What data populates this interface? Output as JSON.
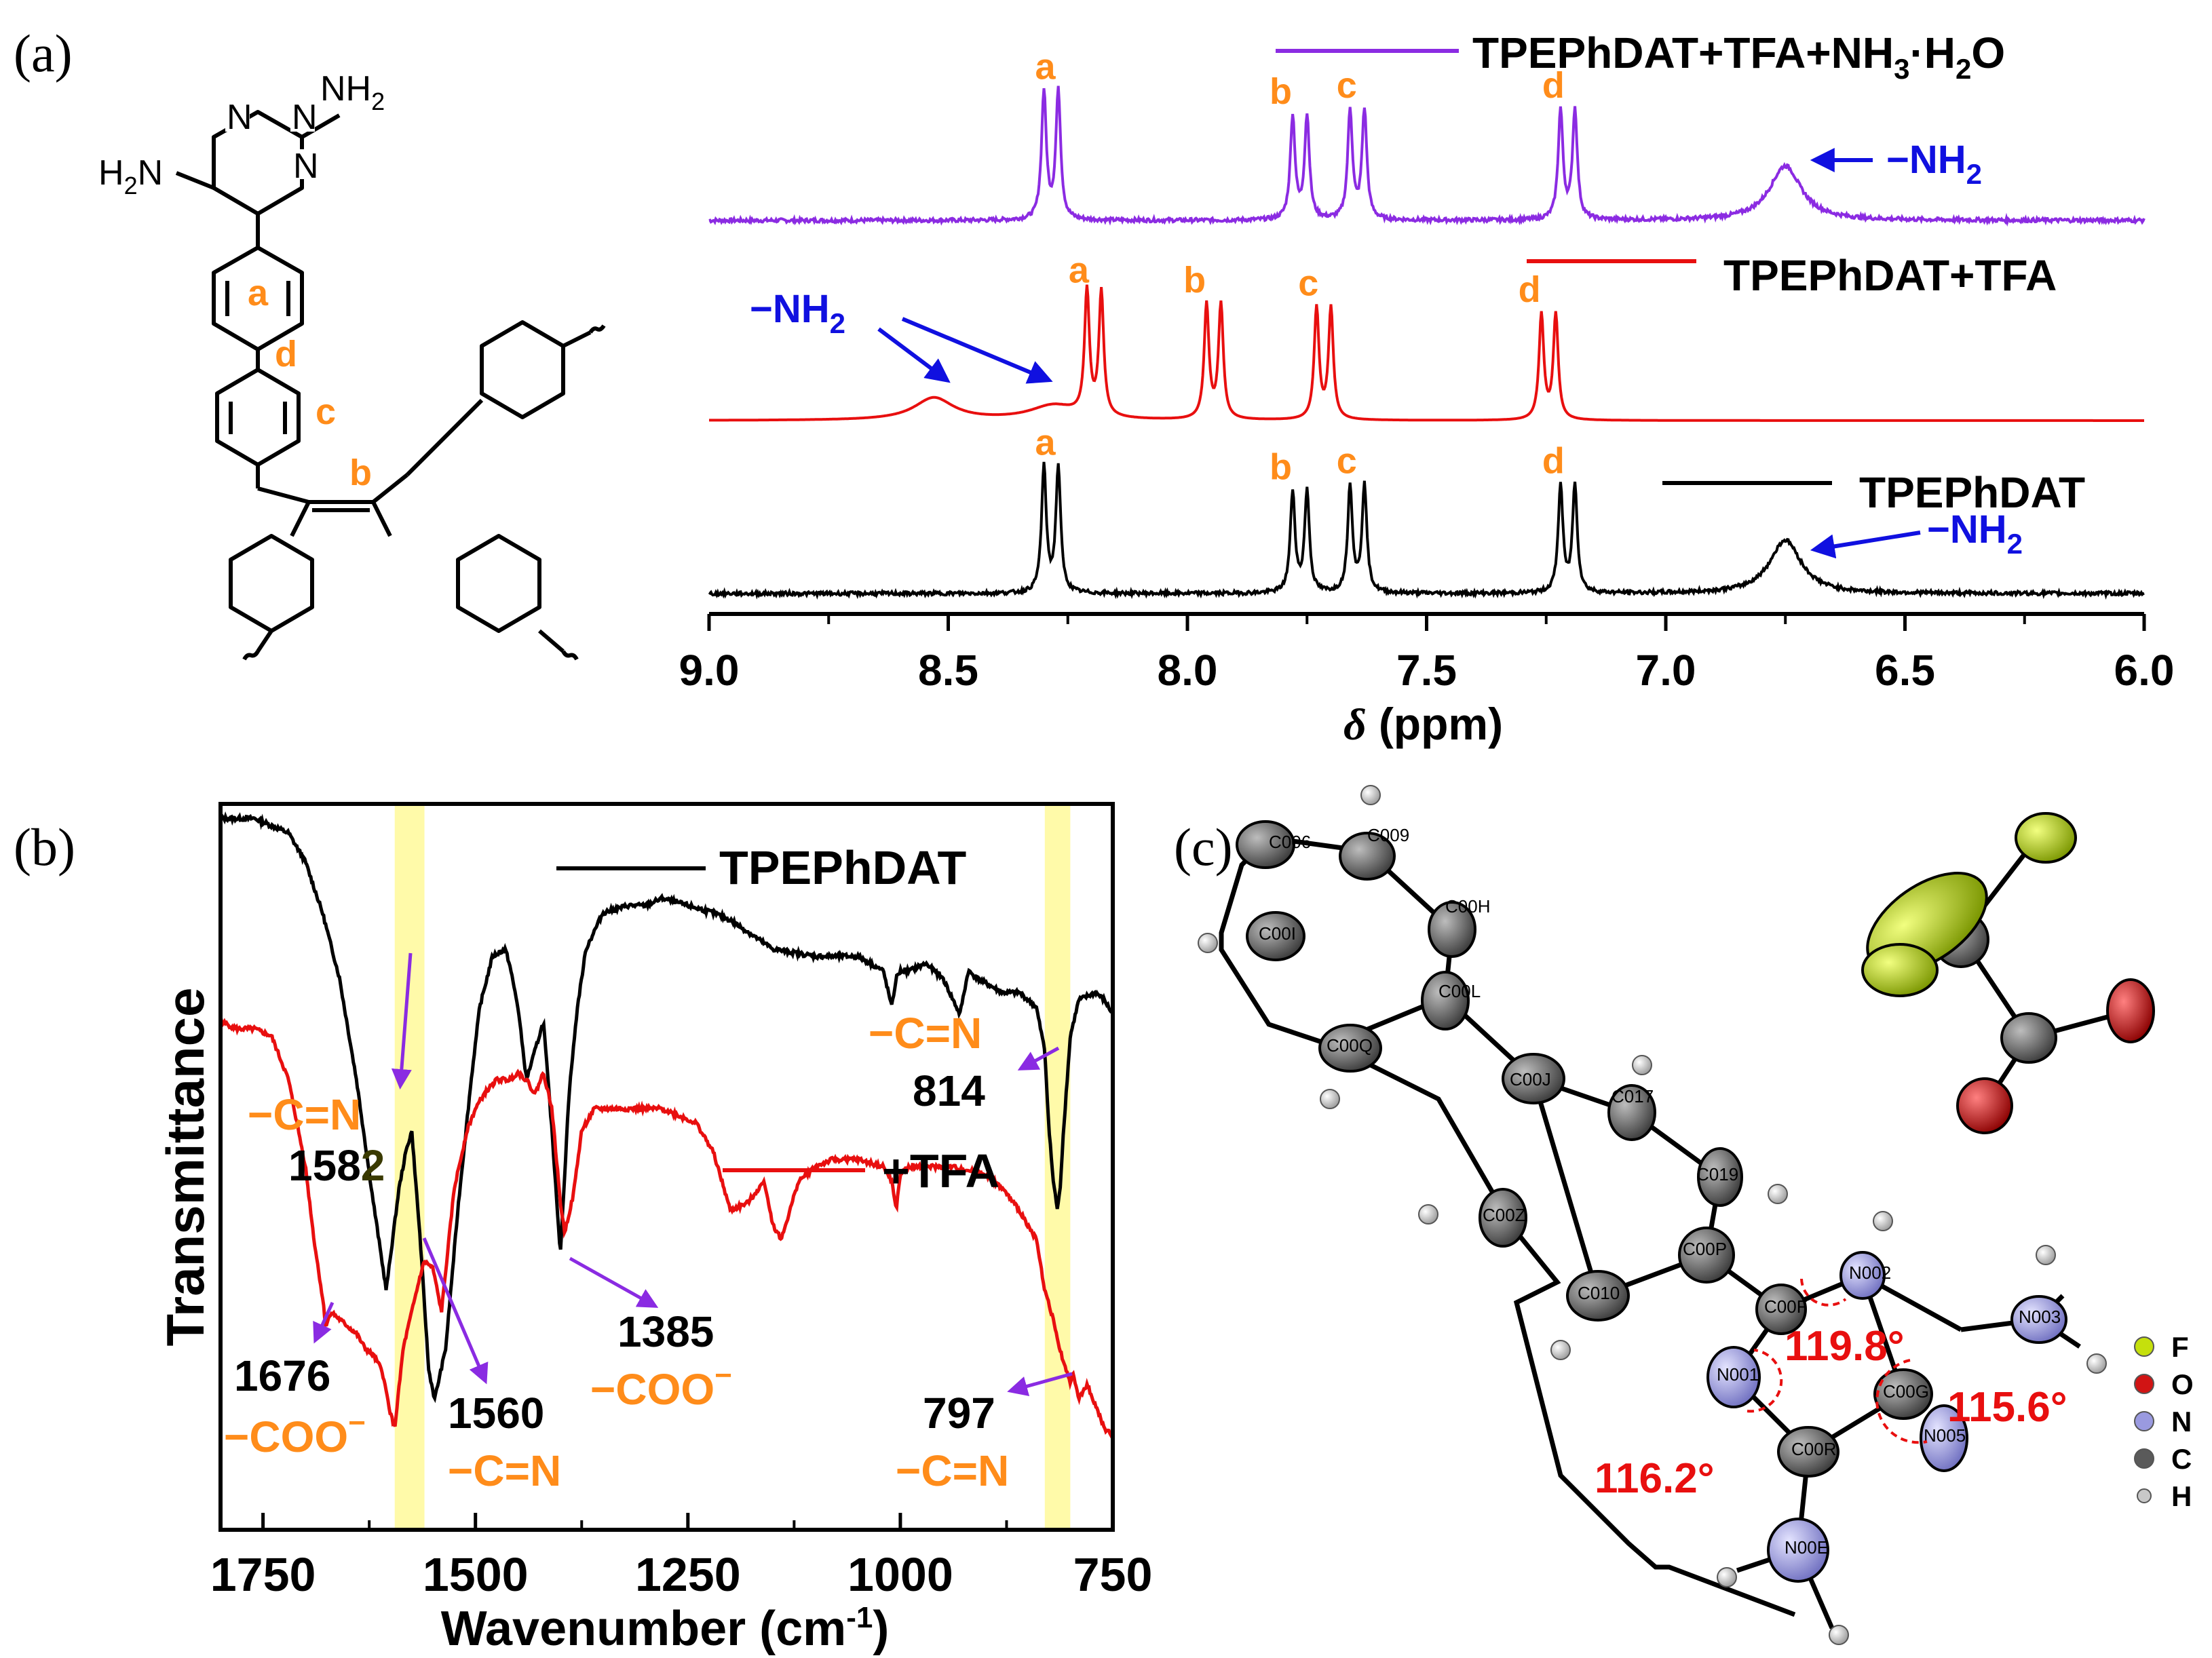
{
  "panel_labels": {
    "a": "(a)",
    "b": "(b)",
    "c": "(c)"
  },
  "colors": {
    "purple": "#8b2be2",
    "red": "#e80f0f",
    "black": "#000000",
    "orange": "#ff8c1a",
    "blue": "#1010e0",
    "arrow_purple": "#8a2be2",
    "highlight": "#fffaa0"
  },
  "structure": {
    "labels": {
      "a": "a",
      "b": "b",
      "c": "c",
      "d": "d"
    },
    "nh2": "NH",
    "h2n": "H",
    "h2n_tail": "N",
    "sub2": "2",
    "n_atom": "N"
  },
  "chart_data": [
    {
      "type": "line",
      "panel": "a",
      "xlabel": "δ (ppm)",
      "xlabel_symbol": "δ",
      "xlabel_unit": "(ppm)",
      "xlim": [
        9.0,
        6.0
      ],
      "xticks": [
        "9.0",
        "8.5",
        "8.0",
        "7.5",
        "7.0",
        "6.5",
        "6.0"
      ],
      "xtick_values": [
        9.0,
        8.5,
        8.0,
        7.5,
        7.0,
        6.5,
        6.0
      ],
      "series": [
        {
          "name": "TPEPhDAT+TFA+NH3·H2O",
          "legend_main": "TPEPhDAT+TFA+NH",
          "legend_sub1": "3",
          "legend_mid": "·H",
          "legend_sub2": "2",
          "legend_end": "O",
          "color": "#8b2be2",
          "baseline": 0.82,
          "noise": 0.012,
          "peaks": [
            [
              8.3,
              0.82,
              0.006
            ],
            [
              8.27,
              0.82,
              0.006
            ],
            [
              7.78,
              0.66,
              0.006
            ],
            [
              7.75,
              0.66,
              0.006
            ],
            [
              7.66,
              0.7,
              0.006
            ],
            [
              7.63,
              0.7,
              0.006
            ],
            [
              7.22,
              0.7,
              0.006
            ],
            [
              7.19,
              0.7,
              0.006
            ],
            [
              6.75,
              0.35,
              0.04
            ]
          ],
          "peak_labels": [
            {
              "text": "a",
              "ppm": 8.29
            },
            {
              "text": "b",
              "ppm": 7.8
            },
            {
              "text": "c",
              "ppm": 7.66
            },
            {
              "text": "d",
              "ppm": 7.23
            }
          ]
        },
        {
          "name": "TPEPhDAT+TFA",
          "color": "#e80f0f",
          "baseline": 0.0,
          "noise": 0.0,
          "peaks": [
            [
              8.53,
              0.14,
              0.05
            ],
            [
              8.28,
              0.09,
              0.06
            ],
            [
              8.21,
              0.78,
              0.006
            ],
            [
              8.18,
              0.78,
              0.006
            ],
            [
              7.96,
              0.72,
              0.006
            ],
            [
              7.93,
              0.72,
              0.006
            ],
            [
              7.73,
              0.7,
              0.006
            ],
            [
              7.7,
              0.7,
              0.006
            ],
            [
              7.26,
              0.66,
              0.006
            ],
            [
              7.23,
              0.66,
              0.006
            ]
          ],
          "peak_labels": [
            {
              "text": "a",
              "ppm": 8.22
            },
            {
              "text": "b",
              "ppm": 7.98
            },
            {
              "text": "c",
              "ppm": 7.74
            },
            {
              "text": "d",
              "ppm": 7.28
            }
          ]
        },
        {
          "name": "TPEPhDAT",
          "color": "#000000",
          "baseline": 0.0,
          "noise": 0.012,
          "peaks": [
            [
              8.3,
              0.82,
              0.006
            ],
            [
              8.27,
              0.82,
              0.006
            ],
            [
              7.78,
              0.66,
              0.006
            ],
            [
              7.75,
              0.66,
              0.006
            ],
            [
              7.66,
              0.7,
              0.006
            ],
            [
              7.63,
              0.7,
              0.006
            ],
            [
              7.22,
              0.7,
              0.006
            ],
            [
              7.19,
              0.7,
              0.006
            ],
            [
              6.75,
              0.35,
              0.04
            ]
          ],
          "peak_labels": [
            {
              "text": "a",
              "ppm": 8.29
            },
            {
              "text": "b",
              "ppm": 7.8
            },
            {
              "text": "c",
              "ppm": 7.66
            },
            {
              "text": "d",
              "ppm": 7.23
            }
          ]
        }
      ],
      "annotations": {
        "nh2_main": "−NH",
        "nh2_sub": "2"
      }
    },
    {
      "type": "line",
      "panel": "b",
      "xlabel": "Wavenumber (cm⁻¹)",
      "xlabel_main": "Wavenumber (cm",
      "xlabel_sup": "-1",
      "xlabel_end": ")",
      "ylabel": "Transmittance",
      "xlim": [
        1800,
        750
      ],
      "xticks": [
        "1750",
        "1500",
        "1250",
        "1000",
        "750"
      ],
      "xtick_values": [
        1750,
        1500,
        1250,
        1000,
        750
      ],
      "highlight_bands": [
        [
          1595,
          1560
        ],
        [
          830,
          800
        ]
      ],
      "series": [
        {
          "name": "TPEPhDAT",
          "color": "#000000",
          "x": [
            1800,
            1760,
            1740,
            1720,
            1700,
            1680,
            1660,
            1640,
            1620,
            1605,
            1590,
            1582,
            1575,
            1565,
            1555,
            1548,
            1535,
            1520,
            1505,
            1495,
            1480,
            1465,
            1460,
            1450,
            1440,
            1430,
            1420,
            1410,
            1400,
            1390,
            1380,
            1370,
            1350,
            1320,
            1300,
            1280,
            1250,
            1220,
            1200,
            1150,
            1100,
            1050,
            1020,
            1010,
            1005,
            1000,
            990,
            970,
            950,
            930,
            920,
            910,
            880,
            860,
            840,
            830,
            825,
            820,
            815,
            812,
            808,
            800,
            790,
            770,
            760,
            750
          ],
          "y": [
            0.98,
            0.98,
            0.97,
            0.96,
            0.92,
            0.85,
            0.76,
            0.62,
            0.45,
            0.33,
            0.47,
            0.52,
            0.55,
            0.4,
            0.22,
            0.18,
            0.25,
            0.45,
            0.62,
            0.72,
            0.79,
            0.8,
            0.78,
            0.72,
            0.62,
            0.66,
            0.7,
            0.55,
            0.38,
            0.6,
            0.72,
            0.8,
            0.85,
            0.86,
            0.86,
            0.87,
            0.86,
            0.85,
            0.84,
            0.8,
            0.79,
            0.79,
            0.77,
            0.72,
            0.76,
            0.77,
            0.77,
            0.78,
            0.76,
            0.71,
            0.77,
            0.76,
            0.74,
            0.74,
            0.72,
            0.66,
            0.55,
            0.48,
            0.44,
            0.47,
            0.55,
            0.68,
            0.73,
            0.74,
            0.73,
            0.71
          ]
        },
        {
          "name": "+TFA",
          "color": "#e80f0f",
          "x": [
            1800,
            1780,
            1760,
            1740,
            1720,
            1700,
            1690,
            1680,
            1676,
            1670,
            1660,
            1650,
            1640,
            1630,
            1620,
            1610,
            1600,
            1595,
            1585,
            1575,
            1565,
            1560,
            1550,
            1540,
            1525,
            1510,
            1500,
            1490,
            1475,
            1460,
            1450,
            1440,
            1430,
            1420,
            1410,
            1400,
            1395,
            1385,
            1375,
            1360,
            1330,
            1300,
            1280,
            1260,
            1240,
            1220,
            1210,
            1200,
            1180,
            1160,
            1150,
            1140,
            1130,
            1120,
            1100,
            1080,
            1050,
            1020,
            1010,
            1005,
            1000,
            990,
            970,
            940,
            900,
            880,
            860,
            840,
            830,
            820,
            815,
            810,
            805,
            800,
            797,
            790,
            780,
            770,
            760,
            750
          ],
          "y": [
            0.7,
            0.69,
            0.69,
            0.68,
            0.62,
            0.5,
            0.4,
            0.32,
            0.28,
            0.3,
            0.29,
            0.28,
            0.27,
            0.25,
            0.24,
            0.22,
            0.16,
            0.14,
            0.25,
            0.3,
            0.35,
            0.37,
            0.36,
            0.3,
            0.47,
            0.55,
            0.58,
            0.6,
            0.62,
            0.62,
            0.63,
            0.62,
            0.6,
            0.63,
            0.58,
            0.45,
            0.41,
            0.46,
            0.55,
            0.58,
            0.58,
            0.58,
            0.58,
            0.57,
            0.56,
            0.52,
            0.48,
            0.44,
            0.45,
            0.48,
            0.42,
            0.4,
            0.44,
            0.48,
            0.5,
            0.51,
            0.51,
            0.5,
            0.48,
            0.44,
            0.49,
            0.5,
            0.5,
            0.5,
            0.49,
            0.47,
            0.44,
            0.4,
            0.33,
            0.29,
            0.26,
            0.24,
            0.22,
            0.2,
            0.22,
            0.18,
            0.2,
            0.17,
            0.14,
            0.13
          ]
        }
      ],
      "annotations": {
        "cn": "−C=N",
        "coo": "−COO",
        "minus": "−",
        "v1582_main": "158",
        "v1582_end": "2",
        "v814": "814",
        "v1676": "1676",
        "v1560": "1560",
        "v1385": "1385",
        "v797": "797"
      }
    }
  ],
  "crystal": {
    "atoms": [
      "C006",
      "C009",
      "C00I",
      "C00H",
      "C00Q",
      "C00L",
      "C00J",
      "C017",
      "C019",
      "C00Z",
      "C00P",
      "C010",
      "C00F",
      "N002",
      "C00G",
      "N003",
      "N001",
      "N005",
      "C00R",
      "N00E"
    ],
    "angles": [
      "119.8°",
      "115.6°",
      "116.2°"
    ],
    "legend": [
      {
        "label": "F",
        "color": "#c5e00c"
      },
      {
        "label": "O",
        "color": "#d11414"
      },
      {
        "label": "N",
        "color": "#9a9ae0"
      },
      {
        "label": "C",
        "color": "#5a5a5a"
      },
      {
        "label": "H",
        "color": "#c8c8c8"
      }
    ]
  }
}
